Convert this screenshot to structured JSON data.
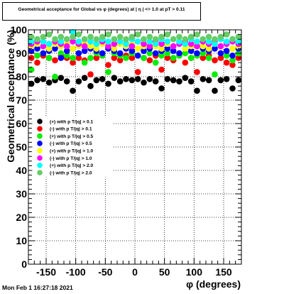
{
  "title": "Geometrical acceptance for Global vs φ (degrees) at | η | <= 1.0 at pT > 0.11",
  "footer": "Mon Feb  1 16:27:18 2021",
  "chart_data": {
    "type": "scatter",
    "xlabel": "φ (degrees)",
    "ylabel": "Geometrical acceptance (%)",
    "xlim": [
      -180,
      180
    ],
    "ylim": [
      0,
      100
    ],
    "xticks": [
      -150,
      -100,
      -50,
      0,
      50,
      100,
      150
    ],
    "yticks": [
      0,
      10,
      20,
      30,
      40,
      50,
      60,
      70,
      80,
      90,
      100
    ],
    "grid": true,
    "legend_position": "left-middle",
    "series": [
      {
        "name": "(+) with p T/|q| > 0.1",
        "color": "#000000",
        "x": [
          -175,
          -165,
          -155,
          -145,
          -135,
          -125,
          -115,
          -105,
          -95,
          -85,
          -75,
          -65,
          -55,
          -45,
          -35,
          -25,
          -15,
          -5,
          5,
          15,
          25,
          35,
          45,
          55,
          65,
          75,
          85,
          95,
          105,
          115,
          125,
          135,
          145,
          155,
          165,
          175
        ],
        "y": [
          77,
          78.5,
          79,
          77.5,
          78.5,
          79.5,
          78,
          74,
          78,
          79.5,
          76,
          78.5,
          79,
          77,
          79.5,
          78,
          79,
          78.5,
          79,
          77.5,
          79,
          78,
          75,
          79,
          78.5,
          78,
          79.5,
          78,
          74,
          79,
          78.5,
          74,
          78.5,
          79,
          75,
          78.5
        ]
      },
      {
        "name": "(-) with p T/|q| > 0.1",
        "color": "#ff0000",
        "x": [
          -175,
          -165,
          -155,
          -145,
          -135,
          -125,
          -115,
          -105,
          -95,
          -85,
          -75,
          -65,
          -55,
          -45,
          -35,
          -25,
          -15,
          -5,
          5,
          15,
          25,
          35,
          45,
          55,
          65,
          75,
          85,
          95,
          105,
          115,
          125,
          135,
          145,
          155,
          165,
          175
        ],
        "y": [
          88,
          86,
          89,
          88,
          87,
          89,
          88,
          86,
          88,
          87,
          81,
          88,
          89,
          85,
          88,
          87,
          89,
          88,
          82,
          88,
          87,
          89,
          83,
          88,
          87,
          89,
          86,
          88,
          82,
          88,
          89,
          87,
          88,
          86,
          85,
          88
        ]
      },
      {
        "name": "(+) with p T/|q| > 0.5",
        "color": "#00ee00",
        "x": [
          -175,
          -165,
          -155,
          -145,
          -135,
          -125,
          -115,
          -105,
          -95,
          -85,
          -75,
          -65,
          -55,
          -45,
          -35,
          -25,
          -15,
          -5,
          5,
          15,
          25,
          35,
          45,
          55,
          65,
          75,
          85,
          95,
          105,
          115,
          125,
          135,
          145,
          155,
          165,
          175
        ],
        "y": [
          83,
          89,
          90,
          88,
          80,
          90,
          89,
          88,
          90,
          86,
          88,
          90,
          89,
          82,
          90,
          89,
          88,
          90,
          89,
          88,
          90,
          86,
          89,
          90,
          88,
          89,
          90,
          88,
          89,
          90,
          88,
          81,
          90,
          89,
          87,
          90
        ]
      },
      {
        "name": "(-) with p T/|q| > 0.5",
        "color": "#0000ff",
        "x": [
          -175,
          -165,
          -155,
          -145,
          -135,
          -125,
          -115,
          -105,
          -95,
          -85,
          -75,
          -65,
          -55,
          -45,
          -35,
          -25,
          -15,
          -5,
          5,
          15,
          25,
          35,
          45,
          55,
          65,
          75,
          85,
          95,
          105,
          115,
          125,
          135,
          145,
          155,
          165,
          175
        ],
        "y": [
          91,
          92,
          90,
          91,
          92,
          88,
          91,
          92,
          90,
          91,
          92,
          91,
          90,
          92,
          91,
          90,
          92,
          91,
          89,
          91,
          92,
          90,
          91,
          92,
          91,
          90,
          92,
          91,
          90,
          92,
          91,
          92,
          90,
          91,
          89,
          92
        ]
      },
      {
        "name": "(+) with p T/|q| > 1.0",
        "color": "#ffff00",
        "x": [
          -175,
          -165,
          -155,
          -145,
          -135,
          -125,
          -115,
          -105,
          -95,
          -85,
          -75,
          -65,
          -55,
          -45,
          -35,
          -25,
          -15,
          -5,
          5,
          15,
          25,
          35,
          45,
          55,
          65,
          75,
          85,
          95,
          105,
          115,
          125,
          135,
          145,
          155,
          165,
          175
        ],
        "y": [
          93,
          94,
          93,
          92,
          94,
          93,
          94,
          92,
          93,
          94,
          93,
          92,
          94,
          93,
          92,
          94,
          93,
          94,
          92,
          93,
          94,
          93,
          92,
          94,
          93,
          94,
          92,
          93,
          94,
          93,
          92,
          94,
          93,
          94,
          92,
          93
        ]
      },
      {
        "name": "(-) with p T/|q| > 1.0",
        "color": "#ff00ff",
        "x": [
          -175,
          -165,
          -155,
          -145,
          -135,
          -125,
          -115,
          -105,
          -95,
          -85,
          -75,
          -65,
          -55,
          -45,
          -35,
          -25,
          -15,
          -5,
          5,
          15,
          25,
          35,
          45,
          55,
          65,
          75,
          85,
          95,
          105,
          115,
          125,
          135,
          145,
          155,
          165,
          175
        ],
        "y": [
          94,
          95,
          93,
          94,
          95,
          94,
          93,
          95,
          94,
          93,
          95,
          94,
          95,
          93,
          94,
          95,
          94,
          93,
          95,
          94,
          93,
          95,
          94,
          95,
          93,
          94,
          95,
          94,
          93,
          95,
          94,
          95,
          93,
          94,
          95,
          94
        ]
      },
      {
        "name": "(+) with p T/|q| > 2.0",
        "color": "#00ffff",
        "x": [
          -175,
          -165,
          -155,
          -145,
          -135,
          -125,
          -115,
          -105,
          -95,
          -85,
          -75,
          -65,
          -55,
          -45,
          -35,
          -25,
          -15,
          -5,
          5,
          15,
          25,
          35,
          45,
          55,
          65,
          75,
          85,
          95,
          105,
          115,
          125,
          135,
          145,
          155,
          165,
          175
        ],
        "y": [
          95,
          96,
          95,
          94,
          96,
          95,
          96,
          99,
          95,
          96,
          95,
          94,
          96,
          95,
          96,
          95,
          94,
          96,
          95,
          96,
          95,
          94,
          96,
          95,
          96,
          95,
          94,
          96,
          95,
          96,
          95,
          94,
          96,
          95,
          96,
          95
        ]
      },
      {
        "name": "(-) with p T/|q| > 2.0",
        "color": "#66cc66",
        "x": [
          -175,
          -165,
          -155,
          -145,
          -135,
          -125,
          -115,
          -105,
          -95,
          -85,
          -75,
          -65,
          -55,
          -45,
          -35,
          -25,
          -15,
          -5,
          5,
          15,
          25,
          35,
          45,
          55,
          65,
          75,
          85,
          95,
          105,
          115,
          125,
          135,
          145,
          155,
          165,
          175
        ],
        "y": [
          97,
          96,
          97,
          98,
          96,
          97,
          96,
          97,
          98,
          96,
          97,
          96,
          97,
          98,
          96,
          97,
          96,
          97,
          98,
          96,
          97,
          96,
          97,
          98,
          96,
          97,
          96,
          97,
          98,
          96,
          97,
          96,
          97,
          98,
          96,
          97
        ]
      }
    ]
  }
}
